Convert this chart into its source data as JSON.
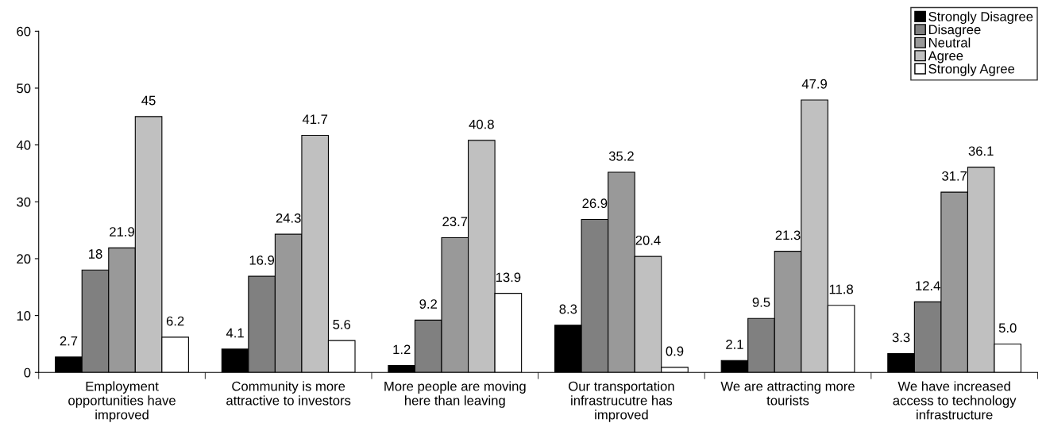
{
  "chart_data": {
    "type": "bar",
    "categories": [
      "Employment\nopportunities have\nimproved",
      "Community is more\nattractive to investors",
      "More people are moving\nhere than leaving",
      "Our transportation\ninfrastrucutre has\nimproved",
      "We are attracting more\ntourists",
      "We have increased\naccess to technology\ninfrastructure"
    ],
    "series": [
      {
        "name": "Strongly Disagree",
        "color": "#000000",
        "values": [
          2.7,
          4.1,
          1.2,
          8.3,
          2.1,
          3.3
        ],
        "value_labels": [
          "2.7",
          "4.1",
          "1.2",
          "8.3",
          "2.1",
          "3.3"
        ]
      },
      {
        "name": "Disagree",
        "color": "#808080",
        "values": [
          18,
          16.9,
          9.2,
          26.9,
          9.5,
          12.4
        ],
        "value_labels": [
          "18",
          "16.9",
          "9.2",
          "26.9",
          "9.5",
          "12.4"
        ]
      },
      {
        "name": "Neutral",
        "color": "#999999",
        "values": [
          21.9,
          24.3,
          23.7,
          35.2,
          21.3,
          31.7
        ],
        "value_labels": [
          "21.9",
          "24.3",
          "23.7",
          "35.2",
          "21.3",
          "31.7"
        ]
      },
      {
        "name": "Agree",
        "color": "#c0c0c0",
        "values": [
          45,
          41.7,
          40.8,
          20.4,
          47.9,
          36.1
        ],
        "value_labels": [
          "45",
          "41.7",
          "40.8",
          "20.4",
          "47.9",
          "36.1"
        ]
      },
      {
        "name": "Strongly Agree",
        "color": "#ffffff",
        "values": [
          6.2,
          5.6,
          13.9,
          0.9,
          11.8,
          5.0
        ],
        "value_labels": [
          "6.2",
          "5.6",
          "13.9",
          "0.9",
          "11.8",
          "5.0"
        ]
      }
    ],
    "ylim": [
      0,
      60
    ],
    "yticks": [
      0,
      10,
      20,
      30,
      40,
      50,
      60
    ],
    "grid": false,
    "legend": "top right"
  }
}
